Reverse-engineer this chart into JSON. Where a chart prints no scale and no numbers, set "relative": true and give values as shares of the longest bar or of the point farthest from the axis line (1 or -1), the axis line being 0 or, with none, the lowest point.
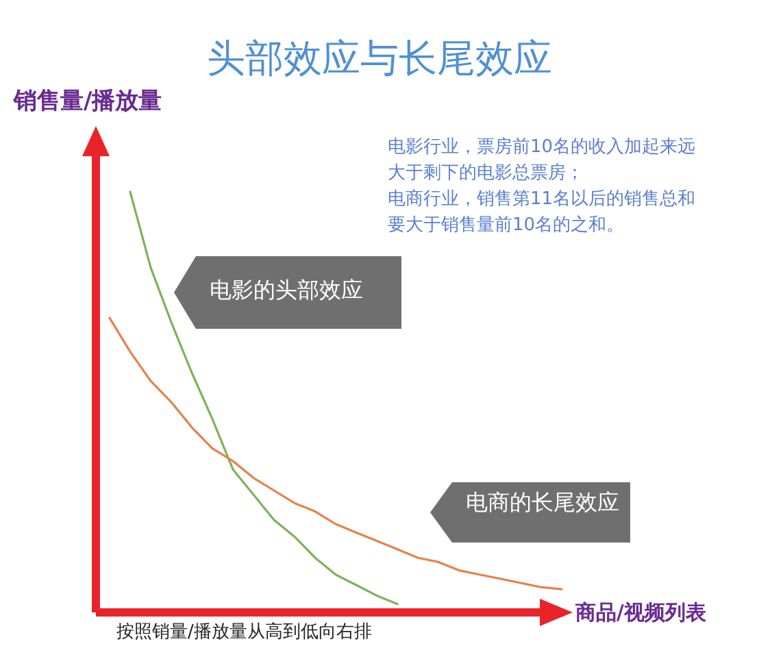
{
  "chart_data": {
    "type": "line",
    "relative": true,
    "title": "头部效应与长尾效应",
    "ylabel": "销售量/播放量",
    "xlabel": "商品/视频列表",
    "categories": [
      null,
      null,
      null,
      null,
      null,
      null,
      null,
      null,
      null,
      null,
      null,
      null,
      null,
      null,
      null,
      null,
      null,
      null,
      null,
      null,
      null,
      null,
      null
    ],
    "series": [
      {
        "name": "电影的头部效应",
        "color": "#7cb35a",
        "values": [
          null,
          1,
          0.82,
          0.69,
          0.57,
          0.46,
          0.34,
          0.28,
          0.22,
          0.18,
          0.13,
          0.09,
          0.065,
          0.04,
          0.02,
          null,
          null,
          null,
          null,
          null,
          null,
          null,
          null
        ]
      },
      {
        "name": "电商的长尾效应",
        "color": "#e8804a",
        "values": [
          0.7,
          0.62,
          0.55,
          0.5,
          0.44,
          0.39,
          0.36,
          0.32,
          0.29,
          0.26,
          0.24,
          0.21,
          0.19,
          0.17,
          0.15,
          0.13,
          0.12,
          0.1,
          0.09,
          0.08,
          0.07,
          0.06,
          0.055
        ]
      }
    ],
    "annotations": [
      "电影行业，票房前10名的收入加起来远大于剩下的电影总票房；",
      "电商行业，销售第11名以后的销售总和要大于销售量前10名的之和。",
      "按照销量/播放量从高到低向右排"
    ]
  }
}
